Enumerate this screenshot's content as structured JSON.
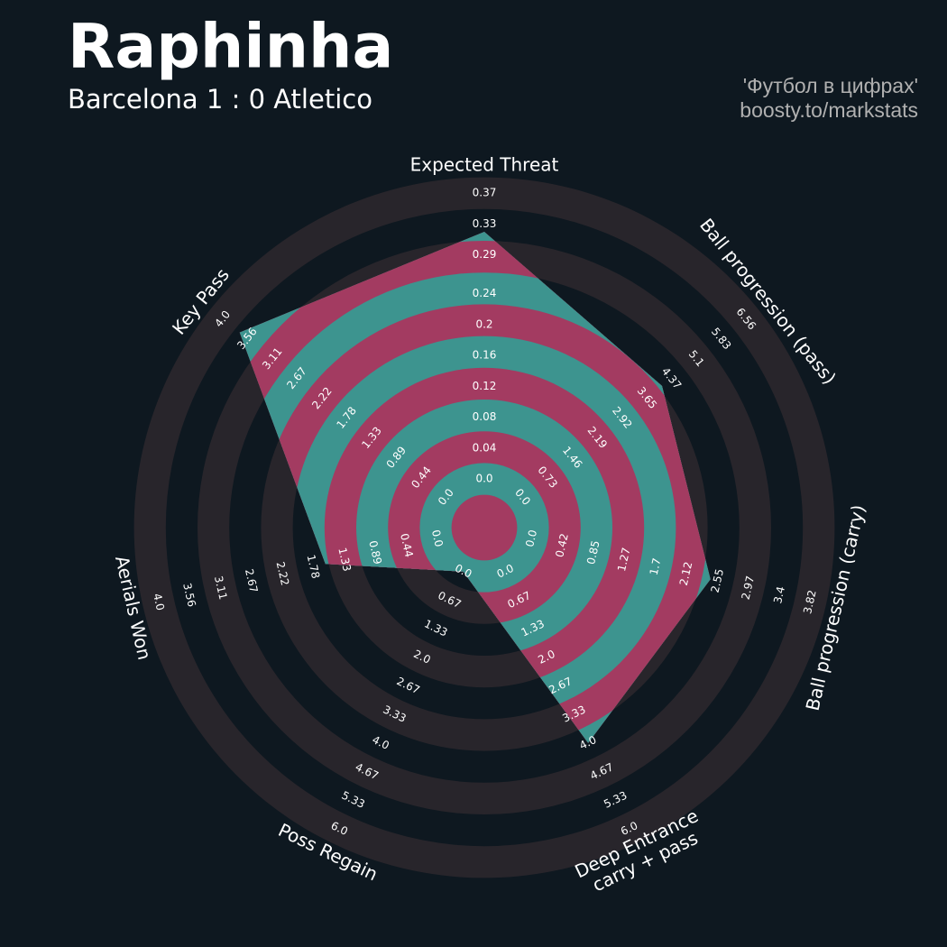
{
  "chart_data": {
    "type": "radar",
    "title": "Raphinha",
    "subtitle": "Barcelona 1 : 0 Atletico",
    "credits": [
      "'Футбол в цифрах'",
      "boosty.to/markstats"
    ],
    "categories": [
      "Expected Threat",
      "Ball progression (pass)",
      "Ball progression (carry)",
      "Deep Entrance\ncarry + pass",
      "Poss Regain",
      "Aerials Won",
      "Key Pass"
    ],
    "values": [
      0.32,
      4.1,
      2.45,
      4.0,
      0,
      1.6,
      3.7
    ],
    "color": "#a33b61",
    "ring_color": "#3d948f",
    "band_color": "#28252b",
    "background": "#0e1820",
    "axes": [
      {
        "lim": [
          0,
          0.37
        ],
        "ticks": [
          {
            "value": 0,
            "label": "0.0"
          },
          0.04,
          0.08,
          0.12,
          0.16,
          0.2,
          0.24,
          0.29,
          0.33,
          0.37
        ]
      },
      {
        "lim": [
          0,
          6.56
        ],
        "ticks": [
          {
            "value": 0,
            "label": "0.0"
          },
          0.73,
          1.46,
          2.19,
          2.92,
          3.65,
          4.37,
          5.1,
          5.83,
          6.56
        ]
      },
      {
        "lim": [
          0,
          3.82
        ],
        "ticks": [
          {
            "value": 0,
            "label": "0.0"
          },
          0.42,
          0.85,
          1.27,
          1.7,
          2.12,
          2.55,
          2.97,
          3.4,
          3.82
        ]
      },
      {
        "lim": [
          0,
          6
        ],
        "ticks": [
          {
            "value": 0,
            "label": "0.0"
          },
          0.67,
          1.33,
          {
            "value": 2,
            "label": "2.0"
          },
          2.67,
          3.33,
          {
            "value": 4,
            "label": "4.0"
          },
          4.67,
          5.33,
          {
            "value": 6,
            "label": "6.0"
          }
        ]
      },
      {
        "lim": [
          0,
          6
        ],
        "ticks": [
          {
            "value": 0,
            "label": "0.0"
          },
          0.67,
          1.33,
          {
            "value": 2,
            "label": "2.0"
          },
          2.67,
          3.33,
          {
            "value": 4,
            "label": "4.0"
          },
          4.67,
          5.33,
          {
            "value": 6,
            "label": "6.0"
          }
        ]
      },
      {
        "lim": [
          0,
          4
        ],
        "ticks": [
          {
            "value": 0,
            "label": "0.0"
          },
          0.44,
          0.89,
          1.33,
          1.78,
          2.22,
          2.67,
          3.11,
          3.56,
          {
            "value": 4,
            "label": "4.0"
          }
        ]
      },
      {
        "lim": [
          0,
          4
        ],
        "ticks": [
          {
            "value": 0,
            "label": "0.0"
          },
          0.44,
          0.89,
          1.33,
          1.78,
          2.22,
          2.67,
          3.11,
          3.56,
          {
            "value": 4,
            "label": "4.0"
          }
        ]
      }
    ]
  }
}
